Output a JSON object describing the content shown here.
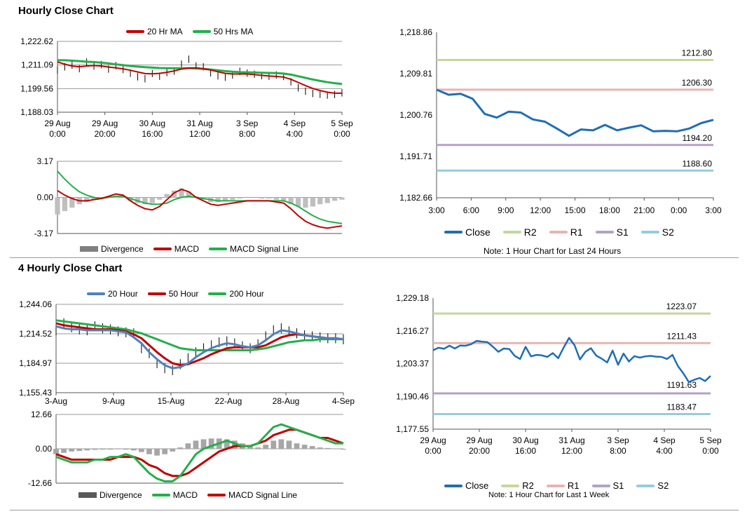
{
  "sections": {
    "hourly_title": "Hourly Close Chart",
    "four_hourly_title": "4 Hourly Close Chart"
  },
  "colors": {
    "ma20_hourly": "#c00000",
    "ma50_hourly": "#22b04a",
    "close": "#1f6eb4",
    "r2": "#c4d89a",
    "r1": "#e8b4b2",
    "s1": "#b3a2c7",
    "s2": "#93cddd",
    "divergence": "#7f7f7f",
    "ma20_4h": "#4f81bd",
    "ma50_4h": "#c00000",
    "ma200_4h": "#22b04a"
  },
  "chart_data": [
    {
      "id": "hourly_ma",
      "type": "line",
      "legend": [
        "20 Hr MA",
        "50 Hrs MA"
      ],
      "y_ticks": [
        "1,222.62",
        "1,211.09",
        "1,199.56",
        "1,188.03"
      ],
      "ylim": [
        1188.03,
        1222.62
      ],
      "x_ticks": [
        [
          "29 Aug",
          "0:00"
        ],
        [
          "29 Aug",
          "20:00"
        ],
        [
          "30 Aug",
          "16:00"
        ],
        [
          "31 Aug",
          "12:00"
        ],
        [
          "3 Sep",
          "8:00"
        ],
        [
          "4 Sep",
          "4:00"
        ],
        [
          "5 Sep",
          "0:00"
        ]
      ],
      "series": [
        {
          "name": "Price",
          "values": [
            1208.6,
            1210.2,
            1211.0,
            1209.3,
            1212.5,
            1210.6,
            1211.3,
            1209.1,
            1210.8,
            1208.9,
            1207.1,
            1205.3,
            1204.4,
            1206.9,
            1205.6,
            1207.4,
            1208.1,
            1211.5,
            1213.9,
            1210.6,
            1210.2,
            1207.3,
            1205.8,
            1205.1,
            1206.2,
            1208.0,
            1207.1,
            1206.6,
            1205.9,
            1205.6,
            1206.2,
            1205.5,
            1202.9,
            1200.0,
            1198.3,
            1197.2,
            1196.8,
            1196.4,
            1196.7,
            1197.5
          ]
        },
        {
          "name": "20 Hr MA",
          "values": [
            1212.6,
            1211.5,
            1210.6,
            1210.2,
            1210.6,
            1210.8,
            1210.6,
            1210.1,
            1209.7,
            1209.2,
            1208.5,
            1207.7,
            1206.9,
            1206.8,
            1207.0,
            1207.5,
            1208.2,
            1209.1,
            1209.6,
            1209.7,
            1209.3,
            1208.6,
            1207.8,
            1207.0,
            1206.7,
            1206.7,
            1206.7,
            1206.4,
            1206.0,
            1205.7,
            1205.5,
            1205.2,
            1204.1,
            1202.6,
            1201.0,
            1199.6,
            1198.6,
            1197.8,
            1197.3,
            1197.3
          ]
        },
        {
          "name": "50 Hrs MA",
          "values": [
            1213.4,
            1213.4,
            1213.2,
            1213.0,
            1212.7,
            1212.5,
            1212.2,
            1211.9,
            1211.4,
            1211.0,
            1210.6,
            1210.3,
            1210.0,
            1209.8,
            1209.6,
            1209.5,
            1209.5,
            1209.5,
            1209.5,
            1209.4,
            1209.2,
            1208.9,
            1208.5,
            1208.1,
            1207.8,
            1207.6,
            1207.5,
            1207.4,
            1207.3,
            1207.2,
            1207.1,
            1206.9,
            1206.4,
            1205.6,
            1204.8,
            1204.0,
            1203.3,
            1202.7,
            1202.2,
            1201.8
          ]
        }
      ]
    },
    {
      "id": "hourly_macd",
      "type": "line",
      "legend": [
        "Divergence",
        "MACD",
        "MACD Signal Line"
      ],
      "y_ticks": [
        "3.17",
        "0.00",
        "-3.17"
      ],
      "ylim": [
        -3.17,
        3.17
      ],
      "series": [
        {
          "name": "Divergence",
          "values": [
            -1.5,
            -1.2,
            -0.9,
            -0.6,
            -0.4,
            -0.2,
            -0.1,
            0.0,
            0.1,
            0.0,
            -0.3,
            -0.5,
            -0.6,
            -0.5,
            -0.2,
            0.3,
            0.6,
            0.8,
            0.5,
            0.1,
            -0.2,
            -0.4,
            -0.4,
            -0.3,
            -0.2,
            -0.1,
            0.0,
            0.0,
            -0.1,
            -0.1,
            -0.2,
            -0.3,
            -0.6,
            -0.8,
            -0.9,
            -0.8,
            -0.6,
            -0.5,
            -0.3,
            -0.2
          ]
        },
        {
          "name": "MACD",
          "values": [
            0.6,
            0.2,
            -0.1,
            -0.3,
            -0.3,
            -0.2,
            -0.1,
            0.1,
            0.3,
            0.2,
            -0.3,
            -0.7,
            -1.0,
            -1.1,
            -0.8,
            -0.2,
            0.4,
            0.7,
            0.5,
            0.0,
            -0.3,
            -0.6,
            -0.7,
            -0.6,
            -0.5,
            -0.4,
            -0.3,
            -0.3,
            -0.3,
            -0.3,
            -0.4,
            -0.5,
            -1.0,
            -1.6,
            -2.1,
            -2.4,
            -2.6,
            -2.7,
            -2.6,
            -2.5
          ]
        },
        {
          "name": "MACD Signal Line",
          "values": [
            2.3,
            1.6,
            1.0,
            0.5,
            0.2,
            0.0,
            -0.1,
            0.0,
            0.1,
            0.1,
            -0.1,
            -0.3,
            -0.5,
            -0.6,
            -0.6,
            -0.5,
            -0.2,
            0.0,
            0.1,
            0.0,
            -0.1,
            -0.2,
            -0.3,
            -0.3,
            -0.3,
            -0.3,
            -0.3,
            -0.3,
            -0.3,
            -0.3,
            -0.3,
            -0.3,
            -0.5,
            -0.8,
            -1.2,
            -1.6,
            -1.9,
            -2.1,
            -2.2,
            -2.3
          ]
        }
      ]
    },
    {
      "id": "hourly_close",
      "type": "line",
      "title_note": "Note: 1 Hour Chart for Last 24 Hours",
      "legend": [
        "Close",
        "R2",
        "R1",
        "S1",
        "S2"
      ],
      "y_ticks": [
        "1,218.86",
        "1,209.81",
        "1,200.76",
        "1,191.71",
        "1,182.66"
      ],
      "ylim": [
        1182.66,
        1218.86
      ],
      "x_ticks": [
        "3:00",
        "6:00",
        "9:00",
        "12:00",
        "15:00",
        "18:00",
        "21:00",
        "0:00",
        "3:00"
      ],
      "levels": [
        {
          "name": "R2",
          "value": 1212.8,
          "label": "1212.80"
        },
        {
          "name": "R1",
          "value": 1206.3,
          "label": "1206.30"
        },
        {
          "name": "S1",
          "value": 1194.2,
          "label": "1194.20"
        },
        {
          "name": "S2",
          "value": 1188.6,
          "label": "1188.60"
        }
      ],
      "series": [
        {
          "name": "Close",
          "values": [
            1206.3,
            1205.2,
            1205.4,
            1204.3,
            1201.0,
            1200.2,
            1201.5,
            1201.3,
            1199.8,
            1199.3,
            1197.8,
            1196.2,
            1197.6,
            1197.4,
            1198.6,
            1197.4,
            1198.0,
            1198.5,
            1197.2,
            1197.3,
            1197.2,
            1197.8,
            1199.0,
            1199.7
          ]
        }
      ]
    },
    {
      "id": "four_hourly_ma",
      "type": "line",
      "legend": [
        "20 Hour",
        "50 Hour",
        "200 Hour"
      ],
      "y_ticks": [
        "1,244.06",
        "1,214.52",
        "1,184.97",
        "1,155.43"
      ],
      "ylim": [
        1155.43,
        1244.06
      ],
      "x_ticks": [
        "3-Aug",
        "9-Aug",
        "15-Aug",
        "22-Aug",
        "28-Aug",
        "4-Sep"
      ],
      "series": [
        {
          "name": "Price",
          "values": [
            1218,
            1225,
            1221,
            1219,
            1218,
            1222,
            1220,
            1219,
            1217,
            1216,
            1215,
            1200,
            1195,
            1185,
            1180,
            1178,
            1184,
            1190,
            1196,
            1200,
            1203,
            1206,
            1207,
            1205,
            1202,
            1200,
            1204,
            1212,
            1218,
            1220,
            1217,
            1215,
            1213,
            1212,
            1211,
            1210,
            1210,
            1209
          ]
        },
        {
          "name": "20 Hour",
          "values": [
            1222,
            1220,
            1219,
            1219,
            1218,
            1218,
            1218,
            1218,
            1217,
            1216,
            1211,
            1205,
            1196,
            1189,
            1183,
            1180,
            1181,
            1185,
            1191,
            1196,
            1200,
            1203,
            1205,
            1204,
            1202,
            1201,
            1203,
            1208,
            1214,
            1218,
            1217,
            1215,
            1213,
            1212,
            1211,
            1210,
            1210,
            1209
          ]
        },
        {
          "name": "50 Hour",
          "values": [
            1225,
            1223,
            1222,
            1221,
            1220,
            1219,
            1219,
            1219,
            1218,
            1217,
            1214,
            1210,
            1203,
            1196,
            1190,
            1185,
            1183,
            1184,
            1187,
            1190,
            1194,
            1197,
            1200,
            1201,
            1201,
            1201,
            1201,
            1203,
            1207,
            1211,
            1213,
            1214,
            1213,
            1212,
            1211,
            1210,
            1210,
            1209
          ]
        },
        {
          "name": "200 Hour",
          "values": [
            1228,
            1227,
            1226,
            1225,
            1224,
            1223,
            1222,
            1221,
            1220,
            1219,
            1217,
            1215,
            1212,
            1209,
            1206,
            1203,
            1200,
            1199,
            1198,
            1198,
            1198,
            1198,
            1198,
            1198,
            1198,
            1198,
            1199,
            1200,
            1202,
            1204,
            1206,
            1207,
            1208,
            1208,
            1209,
            1209,
            1209,
            1209
          ]
        }
      ]
    },
    {
      "id": "four_hourly_macd",
      "type": "line",
      "legend": [
        "Divergence",
        "MACD",
        "MACD Signal Line"
      ],
      "y_ticks": [
        "12.66",
        "0.00",
        "-12.66"
      ],
      "ylim": [
        -12.66,
        12.66
      ],
      "series": [
        {
          "name": "Divergence",
          "values": [
            -2.0,
            -1.5,
            -1.0,
            -0.8,
            -0.6,
            -0.4,
            -0.3,
            -0.3,
            -0.2,
            -0.3,
            -0.6,
            -1.2,
            -2.0,
            -2.5,
            -2.0,
            -1.0,
            0.5,
            2.0,
            3.0,
            3.5,
            3.8,
            3.8,
            3.5,
            3.0,
            2.0,
            1.0,
            0.5,
            1.5,
            3.0,
            3.5,
            3.0,
            2.0,
            1.5,
            1.0,
            0.5,
            0.3,
            0.0,
            -0.3
          ]
        },
        {
          "name": "MACD",
          "values": [
            -3,
            -4,
            -5,
            -5,
            -5,
            -4,
            -4,
            -3,
            -3,
            -2,
            -3,
            -6,
            -9,
            -11,
            -12,
            -12,
            -10,
            -6,
            -2,
            0,
            1,
            2,
            3,
            2,
            1,
            1,
            2,
            5,
            8,
            9,
            8,
            7,
            6,
            5,
            4,
            3,
            2,
            2
          ]
        },
        {
          "name": "MACD Signal Line",
          "values": [
            -2,
            -3,
            -4,
            -4,
            -4,
            -4,
            -4,
            -4,
            -3,
            -3,
            -3,
            -4,
            -6,
            -7,
            -9,
            -10,
            -10,
            -9,
            -7,
            -5,
            -3,
            -1,
            0,
            1,
            1,
            1,
            2,
            3,
            5,
            6,
            7,
            7,
            6,
            5,
            4,
            4,
            3,
            2
          ]
        }
      ]
    },
    {
      "id": "four_hourly_close",
      "type": "line",
      "title_note": "Note: 1 Hour Chart for Last 1 Week",
      "legend": [
        "Close",
        "R2",
        "R1",
        "S1",
        "S2"
      ],
      "y_ticks": [
        "1,229.18",
        "1,216.27",
        "1,203.37",
        "1,190.46",
        "1,177.55"
      ],
      "ylim": [
        1177.55,
        1229.18
      ],
      "x_ticks": [
        [
          "29 Aug",
          "0:00"
        ],
        [
          "29 Aug",
          "20:00"
        ],
        [
          "30 Aug",
          "16:00"
        ],
        [
          "31 Aug",
          "12:00"
        ],
        [
          "3 Sep",
          "8:00"
        ],
        [
          "4 Sep",
          "4:00"
        ],
        [
          "5 Sep",
          "0:00"
        ]
      ],
      "levels": [
        {
          "name": "R2",
          "value": 1223.07,
          "label": "1223.07"
        },
        {
          "name": "R1",
          "value": 1211.43,
          "label": "1211.43"
        },
        {
          "name": "S1",
          "value": 1191.63,
          "label": "1191.63"
        },
        {
          "name": "S2",
          "value": 1183.47,
          "label": "1183.47"
        }
      ],
      "series": [
        {
          "name": "Close",
          "values": [
            1208.6,
            1209.6,
            1209.2,
            1210.4,
            1209.3,
            1210.5,
            1210.4,
            1211.0,
            1212.3,
            1212.0,
            1211.8,
            1210.0,
            1208.0,
            1209.3,
            1209.1,
            1206.4,
            1205.2,
            1210.0,
            1206.2,
            1206.8,
            1206.6,
            1206.0,
            1207.5,
            1205.5,
            1209.7,
            1213.5,
            1210.6,
            1205.0,
            1208.0,
            1209.4,
            1206.5,
            1205.3,
            1203.8,
            1208.5,
            1202.9,
            1207.3,
            1204.2,
            1206.3,
            1205.7,
            1206.2,
            1206.4,
            1206.1,
            1206.0,
            1205.2,
            1206.8,
            1202.4,
            1199.5,
            1196.1,
            1197.0,
            1197.7,
            1196.5,
            1198.5
          ]
        }
      ]
    }
  ]
}
